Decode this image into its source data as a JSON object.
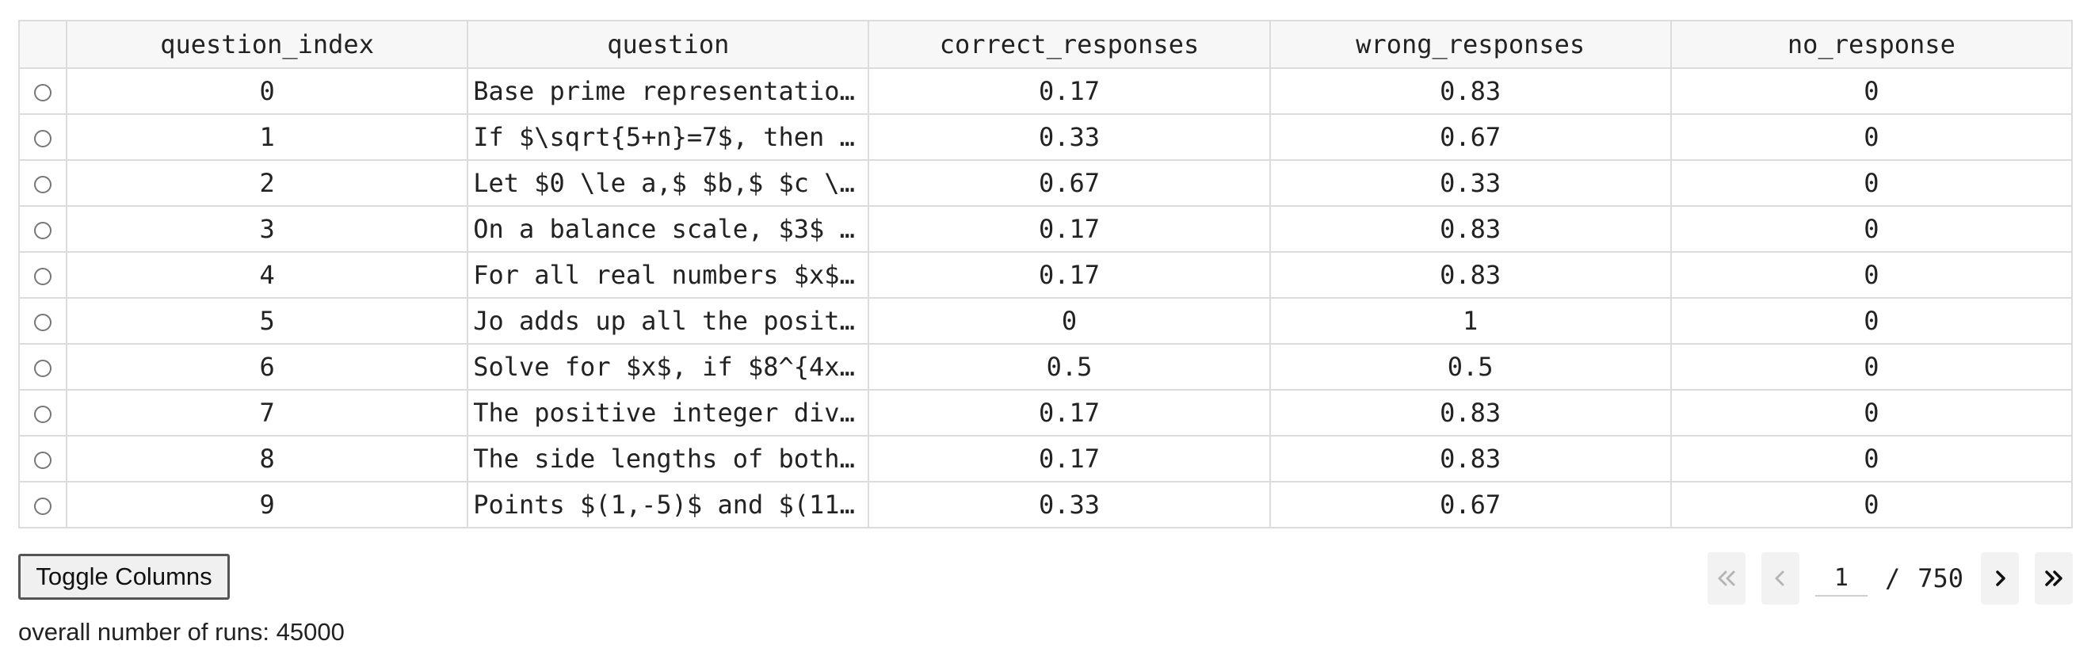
{
  "table": {
    "columns": [
      "question_index",
      "question",
      "correct_responses",
      "wrong_responses",
      "no_response"
    ],
    "rows": [
      {
        "question_index": "0",
        "question": "Base prime representatio…",
        "correct_responses": "0.17",
        "wrong_responses": "0.83",
        "no_response": "0"
      },
      {
        "question_index": "1",
        "question": "If $\\sqrt{5+n}=7$, then …",
        "correct_responses": "0.33",
        "wrong_responses": "0.67",
        "no_response": "0"
      },
      {
        "question_index": "2",
        "question": "Let $0 \\le a,$ $b,$ $c \\…",
        "correct_responses": "0.67",
        "wrong_responses": "0.33",
        "no_response": "0"
      },
      {
        "question_index": "3",
        "question": "On a balance scale, $3$ …",
        "correct_responses": "0.17",
        "wrong_responses": "0.83",
        "no_response": "0"
      },
      {
        "question_index": "4",
        "question": "For all real numbers $x$…",
        "correct_responses": "0.17",
        "wrong_responses": "0.83",
        "no_response": "0"
      },
      {
        "question_index": "5",
        "question": "Jo adds up all the posit…",
        "correct_responses": "0",
        "wrong_responses": "1",
        "no_response": "0"
      },
      {
        "question_index": "6",
        "question": "Solve for $x$, if $8^{4x…",
        "correct_responses": "0.5",
        "wrong_responses": "0.5",
        "no_response": "0"
      },
      {
        "question_index": "7",
        "question": "The positive integer div…",
        "correct_responses": "0.17",
        "wrong_responses": "0.83",
        "no_response": "0"
      },
      {
        "question_index": "8",
        "question": "The side lengths of both…",
        "correct_responses": "0.17",
        "wrong_responses": "0.83",
        "no_response": "0"
      },
      {
        "question_index": "9",
        "question": "Points $(1,-5)$ and $(11…",
        "correct_responses": "0.33",
        "wrong_responses": "0.67",
        "no_response": "0"
      }
    ]
  },
  "controls": {
    "toggle_columns_label": "Toggle Columns"
  },
  "pagination": {
    "current_page": "1",
    "separator": "/",
    "total_pages": "750",
    "first_icon": "double-chevron-left-icon",
    "prev_icon": "chevron-left-icon",
    "next_icon": "chevron-right-icon",
    "last_icon": "double-chevron-right-icon"
  },
  "footer": {
    "runs_text": "overall number of runs: 45000"
  }
}
